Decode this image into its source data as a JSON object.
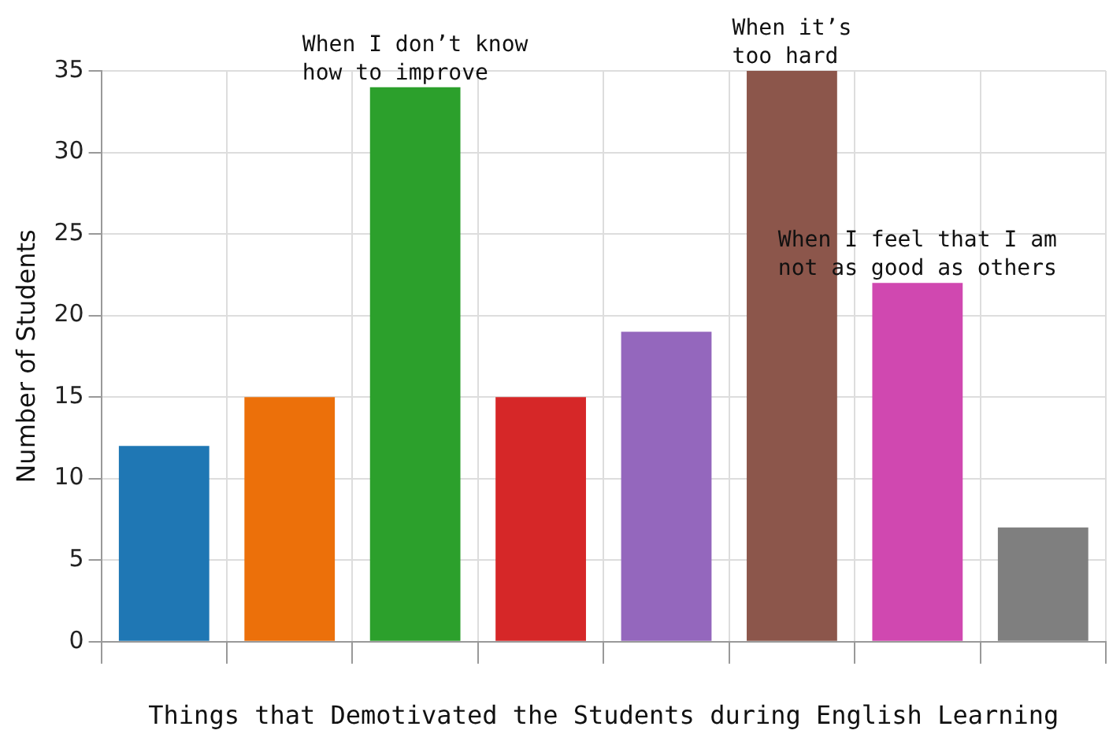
{
  "chart_data": {
    "type": "bar",
    "xlabel": "Things that Demotivated the Students during English Learning",
    "ylabel": "Number of Students",
    "categories": [
      null,
      null,
      null,
      null,
      null,
      null,
      null,
      null
    ],
    "values": [
      12,
      15,
      34,
      15,
      19,
      35,
      22,
      7
    ],
    "colors": [
      "#1f77b4",
      "#ec700a",
      "#2ca02c",
      "#d62728",
      "#9467bd",
      "#8c564b",
      "#d048b0",
      "#7f7f7f"
    ],
    "ylim": [
      0,
      35
    ],
    "yticks": [
      0,
      5,
      10,
      15,
      20,
      25,
      30,
      35
    ],
    "grid": true,
    "legend": false,
    "annotations": [
      {
        "text": "When I don’t know\nhow to improve",
        "y": 34
      },
      {
        "text": "When it’s\ntoo hard",
        "y": 35
      },
      {
        "text": "When I feel that I am\nnot as good as others",
        "y": 22
      }
    ]
  }
}
